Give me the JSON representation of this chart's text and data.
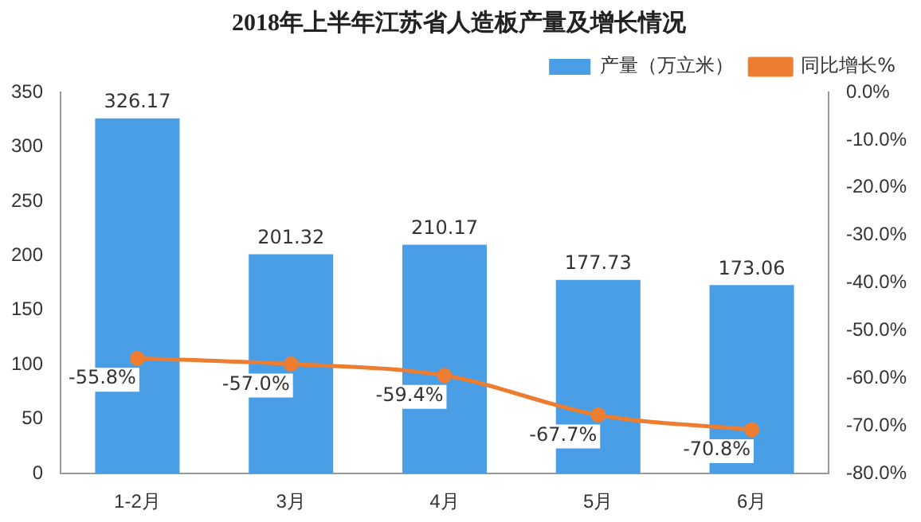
{
  "chart_data": {
    "type": "bar",
    "title": "2018年上半年江苏省人造板产量及增长情况",
    "categories": [
      "1-2月",
      "3月",
      "4月",
      "5月",
      "6月"
    ],
    "series": [
      {
        "name": "产量（万立米）",
        "color": "#4a9ee6",
        "values": [
          326.17,
          201.32,
          210.17,
          177.73,
          173.06
        ],
        "value_labels": [
          "326.17",
          "201.32",
          "210.17",
          "177.73",
          "173.06"
        ]
      },
      {
        "name": "同比增长%",
        "type": "line",
        "axis": "y2",
        "color": "#ed7d31",
        "marker": "circle",
        "values": [
          -55.8,
          -57.0,
          -59.4,
          -67.7,
          -70.8
        ],
        "value_labels": [
          "-55.8%",
          "-57.0%",
          "-59.4%",
          "-67.7%",
          "-70.8%"
        ]
      }
    ],
    "ylim": [
      0,
      350
    ],
    "yticks": [
      0,
      50,
      100,
      150,
      200,
      250,
      300,
      350
    ],
    "y2lim": [
      -80,
      0
    ],
    "y2ticks": [
      {
        "value": 0,
        "label": "0.0%"
      },
      {
        "value": -10,
        "label": "-10.0%"
      },
      {
        "value": -20,
        "label": "-20.0%"
      },
      {
        "value": -30,
        "label": "-30.0%"
      },
      {
        "value": -40,
        "label": "-40.0%"
      },
      {
        "value": -50,
        "label": "-50.0%"
      },
      {
        "value": -60,
        "label": "-60.0%"
      },
      {
        "value": -70,
        "label": "-70.0%"
      },
      {
        "value": -80,
        "label": "-80.0%"
      }
    ],
    "grid": false,
    "legend": "top right"
  }
}
